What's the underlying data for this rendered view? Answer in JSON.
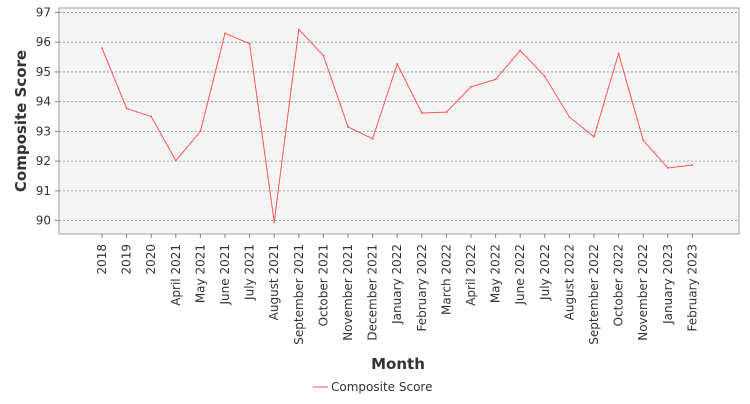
{
  "chart_data": {
    "type": "line",
    "title": "",
    "xlabel": "Month",
    "ylabel": "Composite Score",
    "categories": [
      "2018",
      "2019",
      "2020",
      "April 2021",
      "May 2021",
      "June 2021",
      "July 2021",
      "August 2021",
      "September 2021",
      "October 2021",
      "November 2021",
      "December 2021",
      "January 2022",
      "February 2022",
      "March 2022",
      "April 2022",
      "May 2022",
      "June 2022",
      "July 2022",
      "August 2022",
      "September 2022",
      "October 2022",
      "November 2022",
      "January 2023",
      "February 2023"
    ],
    "series": [
      {
        "name": "Composite Score",
        "color": "#ff5555",
        "values": [
          95.8,
          93.77,
          93.5,
          92.02,
          93.0,
          96.3,
          95.95,
          89.95,
          96.43,
          95.55,
          93.15,
          92.75,
          95.27,
          93.62,
          93.65,
          94.5,
          94.75,
          95.72,
          94.85,
          93.48,
          92.82,
          95.62,
          92.7,
          91.77,
          91.87
        ]
      }
    ],
    "ylim": [
      89.55,
      97.15
    ],
    "yticks": [
      90,
      91,
      92,
      93,
      94,
      95,
      96,
      97
    ],
    "grid": true,
    "legend": "bottom-center"
  }
}
